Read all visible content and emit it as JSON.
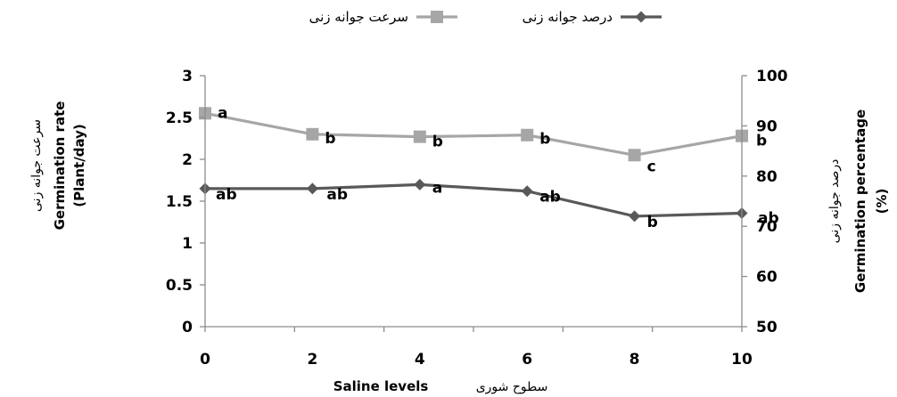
{
  "chart_data": {
    "type": "line",
    "x": [
      0,
      2,
      4,
      6,
      8,
      10
    ],
    "xlabel_en": "Saline levels",
    "xlabel_fa": "سطوح شوری",
    "xlim": [
      0,
      10
    ],
    "x_ticks": [
      "0",
      "2",
      "4",
      "6",
      "8",
      "10"
    ],
    "y_left": {
      "label_fa": "سرعت جوانه زنی",
      "label_en_line1": "Germination rate",
      "label_en_line2": "(Plant/day)",
      "ylim": [
        0,
        3
      ],
      "ticks": [
        "0",
        "0.5",
        "1",
        "1.5",
        "2",
        "2.5",
        "3"
      ]
    },
    "y_right": {
      "label_fa": "درصد جوانه زنی",
      "label_en_line1": "Germination percentage",
      "label_en_line2": "(%)",
      "ylim": [
        50,
        100
      ],
      "ticks": [
        "50",
        "60",
        "70",
        "80",
        "90",
        "100"
      ]
    },
    "series": [
      {
        "name": "سرعت جوانه زنی",
        "axis": "left",
        "color": "#a6a6a6",
        "marker": "square",
        "values": [
          2.55,
          2.3,
          2.27,
          2.29,
          2.05,
          2.28
        ],
        "labels": [
          "a",
          "b",
          "b",
          "b",
          "c",
          "b"
        ]
      },
      {
        "name": "درصد جوانه زنی",
        "axis": "right",
        "color": "#595959",
        "marker": "diamond",
        "values": [
          77.5,
          77.5,
          78.3,
          77.0,
          72.0,
          72.6
        ],
        "labels": [
          "ab",
          "ab",
          "a",
          "ab",
          "b",
          "ab"
        ]
      }
    ],
    "legend_position": "top"
  }
}
